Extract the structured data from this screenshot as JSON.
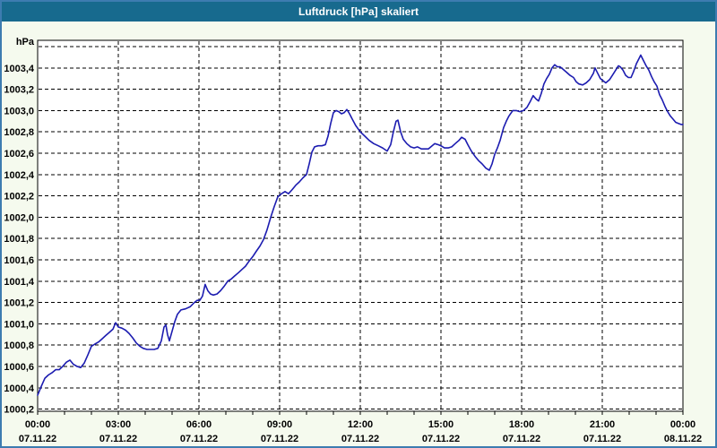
{
  "window": {
    "title": "Luftdruck [hPa] skaliert",
    "titlebar_color": "#176a8e",
    "border_color": "#3d7cb0",
    "background_color": "#f5faee"
  },
  "chart_data": {
    "type": "line",
    "title": "Luftdruck [hPa] skaliert",
    "ylabel": "hPa",
    "xlabel": "",
    "grid": "dashed-black",
    "legend": "none",
    "series_name": "Luftdruck",
    "series_color": "#1c1cb0",
    "plot_bg": "#ffffff",
    "xlim_hours": [
      0,
      24
    ],
    "ylim": [
      1000.2,
      1003.6
    ],
    "y_step": 0.2,
    "y_axis_unit_label": "hPa",
    "y_gridline_values": [
      1000.2,
      1000.4,
      1000.6,
      1000.8,
      1001.0,
      1001.2,
      1001.4,
      1001.6,
      1001.8,
      1002.0,
      1002.2,
      1002.4,
      1002.6,
      1002.8,
      1003.0,
      1003.2,
      1003.4,
      1003.6
    ],
    "y_tick_labels": [
      "1000,2",
      "1000,4",
      "1000,6",
      "1000,8",
      "1001,0",
      "1001,2",
      "1001,4",
      "1001,6",
      "1001,8",
      "1002,0",
      "1002,2",
      "1002,4",
      "1002,6",
      "1002,8",
      "1003,0",
      "1003,2",
      "1003,4"
    ],
    "x_major_hours": [
      0,
      3,
      6,
      9,
      12,
      15,
      18,
      21,
      24
    ],
    "x_minor_step_hours": 1,
    "x_tick_labels": [
      {
        "time": "00:00",
        "date": "07.11.22"
      },
      {
        "time": "03:00",
        "date": "07.11.22"
      },
      {
        "time": "06:00",
        "date": "07.11.22"
      },
      {
        "time": "09:00",
        "date": "07.11.22"
      },
      {
        "time": "12:00",
        "date": "07.11.22"
      },
      {
        "time": "15:00",
        "date": "07.11.22"
      },
      {
        "time": "18:00",
        "date": "07.11.22"
      },
      {
        "time": "21:00",
        "date": "07.11.22"
      },
      {
        "time": "00:00",
        "date": "08.11.22"
      }
    ],
    "points": [
      [
        0.0,
        1000.33
      ],
      [
        0.13,
        1000.41
      ],
      [
        0.27,
        1000.49
      ],
      [
        0.4,
        1000.52
      ],
      [
        0.53,
        1000.54
      ],
      [
        0.67,
        1000.57
      ],
      [
        0.8,
        1000.57
      ],
      [
        0.93,
        1000.6
      ],
      [
        1.07,
        1000.64
      ],
      [
        1.2,
        1000.66
      ],
      [
        1.33,
        1000.62
      ],
      [
        1.47,
        1000.6
      ],
      [
        1.6,
        1000.59
      ],
      [
        1.73,
        1000.63
      ],
      [
        1.87,
        1000.71
      ],
      [
        2.0,
        1000.79
      ],
      [
        2.13,
        1000.81
      ],
      [
        2.27,
        1000.83
      ],
      [
        2.4,
        1000.86
      ],
      [
        2.53,
        1000.89
      ],
      [
        2.67,
        1000.92
      ],
      [
        2.8,
        1000.95
      ],
      [
        2.9,
        1001.01
      ],
      [
        3.0,
        1000.97
      ],
      [
        3.13,
        1000.96
      ],
      [
        3.27,
        1000.94
      ],
      [
        3.4,
        1000.91
      ],
      [
        3.53,
        1000.87
      ],
      [
        3.67,
        1000.82
      ],
      [
        3.8,
        1000.79
      ],
      [
        3.93,
        1000.77
      ],
      [
        4.07,
        1000.76
      ],
      [
        4.2,
        1000.76
      ],
      [
        4.33,
        1000.76
      ],
      [
        4.47,
        1000.77
      ],
      [
        4.6,
        1000.84
      ],
      [
        4.7,
        1000.97
      ],
      [
        4.77,
        1000.99
      ],
      [
        4.83,
        1000.9
      ],
      [
        4.9,
        1000.84
      ],
      [
        5.0,
        1000.93
      ],
      [
        5.1,
        1001.02
      ],
      [
        5.2,
        1001.09
      ],
      [
        5.33,
        1001.13
      ],
      [
        5.5,
        1001.14
      ],
      [
        5.67,
        1001.16
      ],
      [
        5.83,
        1001.2
      ],
      [
        5.93,
        1001.22
      ],
      [
        6.03,
        1001.22
      ],
      [
        6.13,
        1001.26
      ],
      [
        6.23,
        1001.37
      ],
      [
        6.33,
        1001.31
      ],
      [
        6.43,
        1001.28
      ],
      [
        6.53,
        1001.27
      ],
      [
        6.67,
        1001.28
      ],
      [
        6.8,
        1001.31
      ],
      [
        6.93,
        1001.35
      ],
      [
        7.07,
        1001.4
      ],
      [
        7.2,
        1001.42
      ],
      [
        7.33,
        1001.45
      ],
      [
        7.47,
        1001.48
      ],
      [
        7.6,
        1001.51
      ],
      [
        7.73,
        1001.54
      ],
      [
        7.87,
        1001.59
      ],
      [
        8.0,
        1001.63
      ],
      [
        8.13,
        1001.68
      ],
      [
        8.27,
        1001.73
      ],
      [
        8.4,
        1001.79
      ],
      [
        8.53,
        1001.88
      ],
      [
        8.67,
        1002.0
      ],
      [
        8.8,
        1002.1
      ],
      [
        8.93,
        1002.19
      ],
      [
        9.07,
        1002.22
      ],
      [
        9.2,
        1002.24
      ],
      [
        9.33,
        1002.22
      ],
      [
        9.47,
        1002.26
      ],
      [
        9.6,
        1002.3
      ],
      [
        9.73,
        1002.33
      ],
      [
        9.87,
        1002.37
      ],
      [
        10.0,
        1002.4
      ],
      [
        10.1,
        1002.5
      ],
      [
        10.2,
        1002.61
      ],
      [
        10.3,
        1002.66
      ],
      [
        10.43,
        1002.67
      ],
      [
        10.57,
        1002.67
      ],
      [
        10.7,
        1002.68
      ],
      [
        10.8,
        1002.76
      ],
      [
        10.9,
        1002.88
      ],
      [
        11.0,
        1002.98
      ],
      [
        11.1,
        1003.0
      ],
      [
        11.2,
        1002.99
      ],
      [
        11.3,
        1002.97
      ],
      [
        11.4,
        1002.98
      ],
      [
        11.5,
        1003.01
      ],
      [
        11.6,
        1002.97
      ],
      [
        11.7,
        1002.92
      ],
      [
        11.83,
        1002.86
      ],
      [
        12.0,
        1002.8
      ],
      [
        12.17,
        1002.76
      ],
      [
        12.33,
        1002.72
      ],
      [
        12.5,
        1002.69
      ],
      [
        12.67,
        1002.67
      ],
      [
        12.83,
        1002.65
      ],
      [
        13.0,
        1002.62
      ],
      [
        13.13,
        1002.68
      ],
      [
        13.23,
        1002.8
      ],
      [
        13.33,
        1002.9
      ],
      [
        13.4,
        1002.91
      ],
      [
        13.5,
        1002.8
      ],
      [
        13.6,
        1002.73
      ],
      [
        13.73,
        1002.69
      ],
      [
        13.87,
        1002.66
      ],
      [
        14.0,
        1002.65
      ],
      [
        14.13,
        1002.66
      ],
      [
        14.27,
        1002.64
      ],
      [
        14.4,
        1002.64
      ],
      [
        14.53,
        1002.64
      ],
      [
        14.67,
        1002.67
      ],
      [
        14.77,
        1002.69
      ],
      [
        14.9,
        1002.68
      ],
      [
        15.0,
        1002.67
      ],
      [
        15.13,
        1002.65
      ],
      [
        15.27,
        1002.65
      ],
      [
        15.4,
        1002.66
      ],
      [
        15.53,
        1002.69
      ],
      [
        15.67,
        1002.72
      ],
      [
        15.77,
        1002.75
      ],
      [
        15.9,
        1002.73
      ],
      [
        16.0,
        1002.68
      ],
      [
        16.13,
        1002.62
      ],
      [
        16.27,
        1002.57
      ],
      [
        16.4,
        1002.53
      ],
      [
        16.53,
        1002.5
      ],
      [
        16.67,
        1002.46
      ],
      [
        16.8,
        1002.44
      ],
      [
        16.9,
        1002.5
      ],
      [
        17.0,
        1002.59
      ],
      [
        17.1,
        1002.65
      ],
      [
        17.2,
        1002.72
      ],
      [
        17.33,
        1002.84
      ],
      [
        17.43,
        1002.9
      ],
      [
        17.53,
        1002.95
      ],
      [
        17.67,
        1003.0
      ],
      [
        17.8,
        1003.0
      ],
      [
        17.93,
        1002.99
      ],
      [
        18.07,
        1003.0
      ],
      [
        18.2,
        1003.03
      ],
      [
        18.33,
        1003.09
      ],
      [
        18.43,
        1003.14
      ],
      [
        18.53,
        1003.11
      ],
      [
        18.63,
        1003.09
      ],
      [
        18.73,
        1003.16
      ],
      [
        18.83,
        1003.25
      ],
      [
        18.93,
        1003.3
      ],
      [
        19.03,
        1003.34
      ],
      [
        19.13,
        1003.4
      ],
      [
        19.23,
        1003.43
      ],
      [
        19.33,
        1003.41
      ],
      [
        19.43,
        1003.41
      ],
      [
        19.53,
        1003.39
      ],
      [
        19.67,
        1003.36
      ],
      [
        19.8,
        1003.33
      ],
      [
        19.93,
        1003.31
      ],
      [
        20.03,
        1003.27
      ],
      [
        20.13,
        1003.25
      ],
      [
        20.27,
        1003.24
      ],
      [
        20.4,
        1003.26
      ],
      [
        20.53,
        1003.29
      ],
      [
        20.67,
        1003.35
      ],
      [
        20.73,
        1003.4
      ],
      [
        20.83,
        1003.35
      ],
      [
        20.93,
        1003.3
      ],
      [
        21.03,
        1003.28
      ],
      [
        21.13,
        1003.26
      ],
      [
        21.27,
        1003.29
      ],
      [
        21.4,
        1003.34
      ],
      [
        21.5,
        1003.38
      ],
      [
        21.6,
        1003.42
      ],
      [
        21.67,
        1003.41
      ],
      [
        21.77,
        1003.38
      ],
      [
        21.87,
        1003.33
      ],
      [
        21.97,
        1003.31
      ],
      [
        22.07,
        1003.31
      ],
      [
        22.17,
        1003.37
      ],
      [
        22.27,
        1003.44
      ],
      [
        22.37,
        1003.49
      ],
      [
        22.43,
        1003.52
      ],
      [
        22.53,
        1003.47
      ],
      [
        22.63,
        1003.42
      ],
      [
        22.73,
        1003.38
      ],
      [
        22.83,
        1003.32
      ],
      [
        22.93,
        1003.27
      ],
      [
        23.03,
        1003.23
      ],
      [
        23.13,
        1003.15
      ],
      [
        23.23,
        1003.1
      ],
      [
        23.33,
        1003.04
      ],
      [
        23.43,
        1002.99
      ],
      [
        23.53,
        1002.95
      ],
      [
        23.63,
        1002.92
      ],
      [
        23.73,
        1002.89
      ],
      [
        23.83,
        1002.88
      ],
      [
        23.93,
        1002.87
      ],
      [
        24.0,
        1002.87
      ]
    ]
  }
}
